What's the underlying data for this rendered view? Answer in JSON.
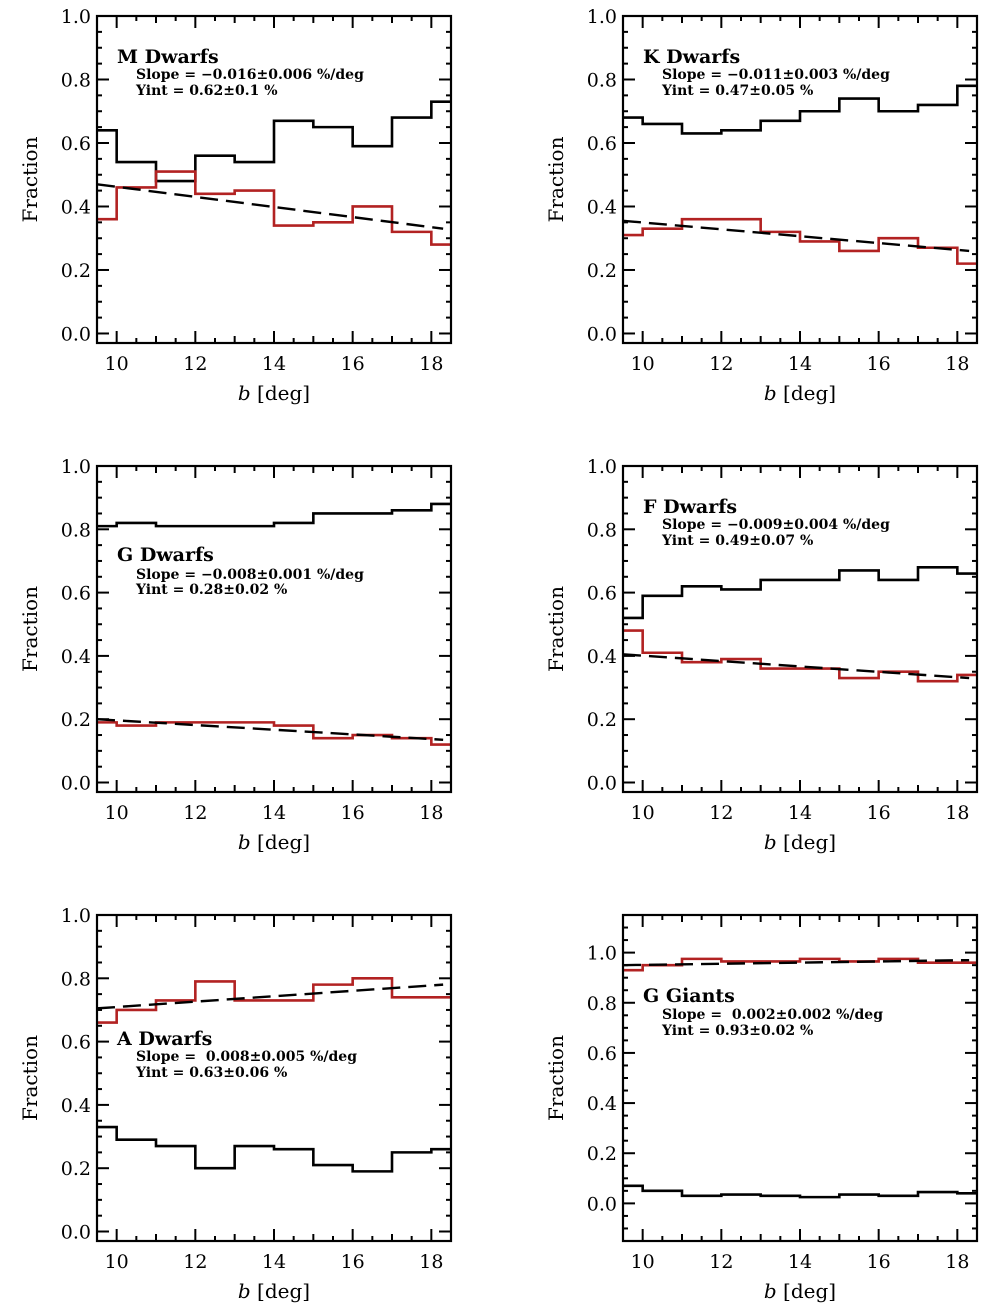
{
  "chart_data": [
    {
      "type": "line",
      "title": "M Dwarfs",
      "annotations": [
        "Slope = −0.016±0.006 %/deg",
        "Yint = 0.62±0.1 %"
      ],
      "xlabel": "b [deg]",
      "ylabel": "Fraction",
      "xlim": [
        9.5,
        18.5
      ],
      "ylim": [
        -0.03,
        1.0
      ],
      "xticks": [
        "10",
        "12",
        "14",
        "16",
        "18"
      ],
      "yticks": [
        "0.0",
        "0.2",
        "0.4",
        "0.6",
        "0.8",
        "1.0"
      ],
      "bin_edges": [
        9.5,
        10,
        11,
        12,
        13,
        14,
        15,
        16,
        17,
        18,
        18.5
      ],
      "series": [
        {
          "name": "black",
          "color": "#000000",
          "style": "step",
          "values": [
            0.64,
            0.54,
            0.48,
            0.56,
            0.54,
            0.67,
            0.65,
            0.59,
            0.68,
            0.73
          ]
        },
        {
          "name": "red",
          "color": "#b22222",
          "style": "step",
          "values": [
            0.36,
            0.46,
            0.51,
            0.44,
            0.45,
            0.34,
            0.35,
            0.4,
            0.32,
            0.28
          ]
        },
        {
          "name": "fit",
          "color": "#000000",
          "style": "dashed",
          "x": [
            9.5,
            18.3
          ],
          "y": [
            0.47,
            0.33
          ]
        }
      ]
    },
    {
      "type": "line",
      "title": "K Dwarfs",
      "annotations": [
        "Slope = −0.011±0.003 %/deg",
        "Yint = 0.47±0.05 %"
      ],
      "xlabel": "b [deg]",
      "ylabel": "Fraction",
      "xlim": [
        9.5,
        18.5
      ],
      "ylim": [
        -0.03,
        1.0
      ],
      "xticks": [
        "10",
        "12",
        "14",
        "16",
        "18"
      ],
      "yticks": [
        "0.0",
        "0.2",
        "0.4",
        "0.6",
        "0.8",
        "1.0"
      ],
      "bin_edges": [
        9.5,
        10,
        11,
        12,
        13,
        14,
        15,
        16,
        17,
        18,
        18.5
      ],
      "series": [
        {
          "name": "black",
          "color": "#000000",
          "style": "step",
          "values": [
            0.68,
            0.66,
            0.63,
            0.64,
            0.67,
            0.7,
            0.74,
            0.7,
            0.72,
            0.78
          ]
        },
        {
          "name": "red",
          "color": "#b22222",
          "style": "step",
          "values": [
            0.31,
            0.33,
            0.36,
            0.36,
            0.32,
            0.29,
            0.26,
            0.3,
            0.27,
            0.22
          ]
        },
        {
          "name": "fit",
          "color": "#000000",
          "style": "dashed",
          "x": [
            9.5,
            18.3
          ],
          "y": [
            0.355,
            0.26
          ]
        }
      ]
    },
    {
      "type": "line",
      "title": "G Dwarfs",
      "annotations": [
        "Slope = −0.008±0.001 %/deg",
        "Yint = 0.28±0.02 %"
      ],
      "xlabel": "b [deg]",
      "ylabel": "Fraction",
      "xlim": [
        9.5,
        18.5
      ],
      "ylim": [
        -0.03,
        1.0
      ],
      "xticks": [
        "10",
        "12",
        "14",
        "16",
        "18"
      ],
      "yticks": [
        "0.0",
        "0.2",
        "0.4",
        "0.6",
        "0.8",
        "1.0"
      ],
      "bin_edges": [
        9.5,
        10,
        11,
        12,
        13,
        14,
        15,
        16,
        17,
        18,
        18.5
      ],
      "series": [
        {
          "name": "black",
          "color": "#000000",
          "style": "step",
          "values": [
            0.81,
            0.82,
            0.81,
            0.81,
            0.81,
            0.82,
            0.85,
            0.85,
            0.86,
            0.88
          ]
        },
        {
          "name": "red",
          "color": "#b22222",
          "style": "step",
          "values": [
            0.19,
            0.18,
            0.19,
            0.19,
            0.19,
            0.18,
            0.14,
            0.15,
            0.14,
            0.12
          ]
        },
        {
          "name": "fit",
          "color": "#000000",
          "style": "dashed",
          "x": [
            9.5,
            18.3
          ],
          "y": [
            0.2,
            0.135
          ]
        }
      ]
    },
    {
      "type": "line",
      "title": "F Dwarfs",
      "annotations": [
        "Slope = −0.009±0.004 %/deg",
        "Yint = 0.49±0.07 %"
      ],
      "xlabel": "b [deg]",
      "ylabel": "Fraction",
      "xlim": [
        9.5,
        18.5
      ],
      "ylim": [
        -0.03,
        1.0
      ],
      "xticks": [
        "10",
        "12",
        "14",
        "16",
        "18"
      ],
      "yticks": [
        "0.0",
        "0.2",
        "0.4",
        "0.6",
        "0.8",
        "1.0"
      ],
      "bin_edges": [
        9.5,
        10,
        11,
        12,
        13,
        14,
        15,
        16,
        17,
        18,
        18.5
      ],
      "series": [
        {
          "name": "black",
          "color": "#000000",
          "style": "step",
          "values": [
            0.52,
            0.59,
            0.62,
            0.61,
            0.64,
            0.64,
            0.67,
            0.64,
            0.68,
            0.66
          ]
        },
        {
          "name": "red",
          "color": "#b22222",
          "style": "step",
          "values": [
            0.48,
            0.41,
            0.38,
            0.39,
            0.36,
            0.36,
            0.33,
            0.35,
            0.32,
            0.34
          ]
        },
        {
          "name": "fit",
          "color": "#000000",
          "style": "dashed",
          "x": [
            9.5,
            18.3
          ],
          "y": [
            0.405,
            0.33
          ]
        }
      ]
    },
    {
      "type": "line",
      "title": "A Dwarfs",
      "annotations": [
        "Slope =  0.008±0.005 %/deg",
        "Yint = 0.63±0.06 %"
      ],
      "xlabel": "b [deg]",
      "ylabel": "Fraction",
      "xlim": [
        9.5,
        18.5
      ],
      "ylim": [
        -0.03,
        1.0
      ],
      "xticks": [
        "10",
        "12",
        "14",
        "16",
        "18"
      ],
      "yticks": [
        "0.0",
        "0.2",
        "0.4",
        "0.6",
        "0.8",
        "1.0"
      ],
      "bin_edges": [
        9.5,
        10,
        11,
        12,
        13,
        14,
        15,
        16,
        17,
        18,
        18.5
      ],
      "series": [
        {
          "name": "black",
          "color": "#000000",
          "style": "step",
          "values": [
            0.33,
            0.29,
            0.27,
            0.2,
            0.27,
            0.26,
            0.21,
            0.19,
            0.25,
            0.26
          ]
        },
        {
          "name": "red",
          "color": "#b22222",
          "style": "step",
          "values": [
            0.66,
            0.7,
            0.73,
            0.79,
            0.73,
            0.73,
            0.78,
            0.8,
            0.74,
            0.74
          ]
        },
        {
          "name": "fit",
          "color": "#000000",
          "style": "dashed",
          "x": [
            9.5,
            18.3
          ],
          "y": [
            0.705,
            0.78
          ]
        }
      ]
    },
    {
      "type": "line",
      "title": "G Giants",
      "annotations": [
        "Slope =  0.002±0.002 %/deg",
        "Yint = 0.93±0.02 %"
      ],
      "xlabel": "b [deg]",
      "ylabel": "Fraction",
      "xlim": [
        9.5,
        18.5
      ],
      "ylim": [
        -0.15,
        1.15
      ],
      "xticks": [
        "10",
        "12",
        "14",
        "16",
        "18"
      ],
      "yticks": [
        "0.0",
        "0.2",
        "0.4",
        "0.6",
        "0.8",
        "1.0"
      ],
      "bin_edges": [
        9.5,
        10,
        11,
        12,
        13,
        14,
        15,
        16,
        17,
        18,
        18.5
      ],
      "series": [
        {
          "name": "black",
          "color": "#000000",
          "style": "step",
          "values": [
            0.07,
            0.05,
            0.03,
            0.035,
            0.03,
            0.025,
            0.035,
            0.03,
            0.045,
            0.04
          ]
        },
        {
          "name": "red",
          "color": "#b22222",
          "style": "step",
          "values": [
            0.93,
            0.95,
            0.975,
            0.965,
            0.965,
            0.975,
            0.965,
            0.975,
            0.96,
            0.96
          ]
        },
        {
          "name": "fit",
          "color": "#000000",
          "style": "dashed",
          "x": [
            9.5,
            18.3
          ],
          "y": [
            0.95,
            0.97
          ]
        }
      ]
    }
  ]
}
